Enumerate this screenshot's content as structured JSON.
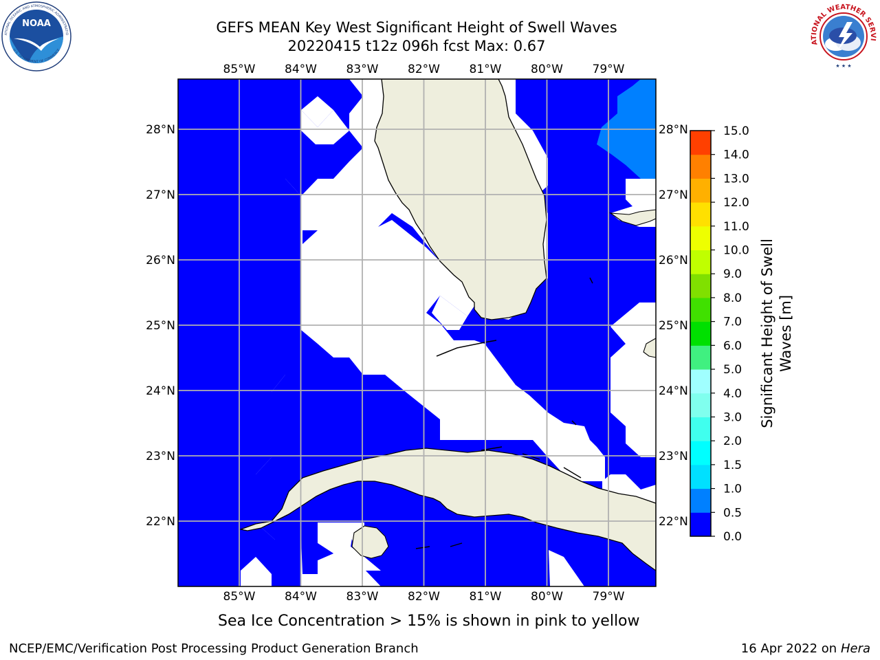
{
  "title_line1": "GEFS MEAN Key West Significant Height of Swell Waves",
  "title_line2": "20220415 t12z 096h fcst   Max: 0.67",
  "logos": {
    "noaa": {
      "text": "NOAA",
      "ring_text_top": "NATIONAL OCEANIC AND ATMOSPHERIC ADMINISTRATION",
      "ring_text_bottom": "U.S. DEPARTMENT OF COMMERCE"
    },
    "nws": {
      "ring_text": "NATIONAL WEATHER SERVICE"
    }
  },
  "map": {
    "lon_labels": [
      "85°W",
      "84°W",
      "83°W",
      "82°W",
      "81°W",
      "80°W",
      "79°W"
    ],
    "lat_labels": [
      "28°N",
      "27°N",
      "26°N",
      "25°N",
      "24°N",
      "23°N",
      "22°N"
    ],
    "colors": {
      "ocean_fill": "#0000ff",
      "swell_high": "#0080ff",
      "land": "#eeeedd",
      "grid": "#b0b0b0",
      "coast": "#000000"
    }
  },
  "colorbar": {
    "label_line1": "Significant Height of Swell",
    "label_line2": "Waves [m]",
    "ticks": [
      "0.0",
      "0.5",
      "1.0",
      "1.5",
      "2.0",
      "3.0",
      "4.0",
      "5.0",
      "6.0",
      "7.0",
      "8.0",
      "9.0",
      "10.0",
      "11.0",
      "12.0",
      "13.0",
      "14.0",
      "15.0"
    ],
    "colors": [
      "#0000ff",
      "#0080ff",
      "#00e0ff",
      "#00ffff",
      "#40ffee",
      "#80ffee",
      "#a0ffff",
      "#40f080",
      "#00e000",
      "#40e000",
      "#80e000",
      "#c0ff00",
      "#eeff00",
      "#ffe000",
      "#ffb000",
      "#ff8000",
      "#ff4000",
      "#ff0000"
    ]
  },
  "caption": "Sea Ice Concentration > 15% is shown in pink to yellow",
  "footer_left": "NCEP/EMC/Verification Post Processing Product Generation Branch",
  "footer_date": "16 Apr 2022 on ",
  "footer_host": "Hera"
}
